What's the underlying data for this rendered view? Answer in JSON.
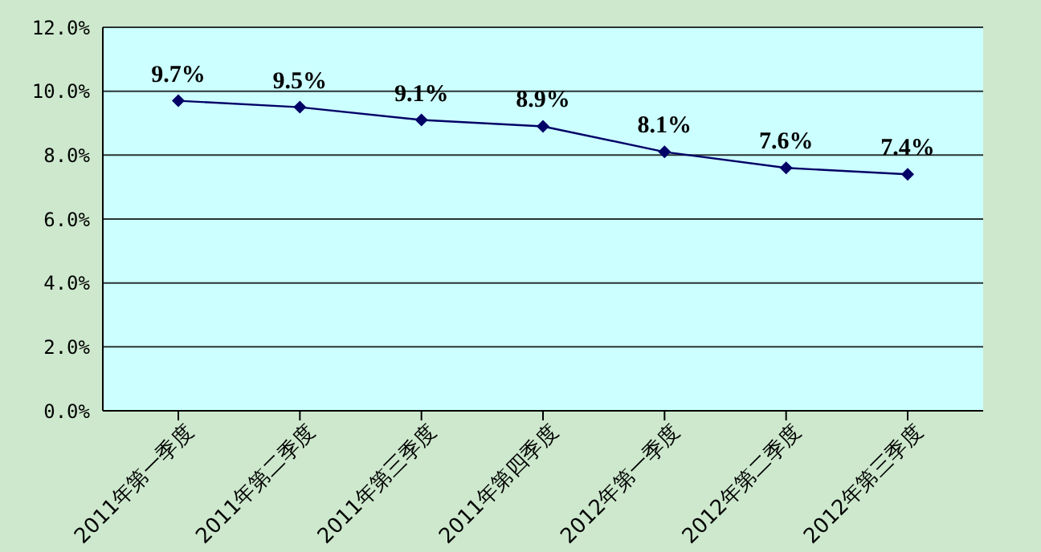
{
  "chart_data": {
    "type": "line",
    "categories": [
      "2011年第一季度",
      "2011年第二季度",
      "2011年第三季度",
      "2011年第四季度",
      "2012年第一季度",
      "2012年第二季度",
      "2012年第三季度"
    ],
    "series": [
      {
        "color": "#000066",
        "values": [
          9.7,
          9.5,
          9.1,
          8.9,
          8.1,
          7.6,
          7.4
        ],
        "value_labels": [
          "9.7%",
          "9.5%",
          "9.1%",
          "8.9%",
          "8.1%",
          "7.6%",
          "7.4%"
        ]
      }
    ],
    "ylim": [
      0,
      12
    ],
    "yticks": [
      {
        "value": 0,
        "label": "0.0%"
      },
      {
        "value": 2,
        "label": "2.0%"
      },
      {
        "value": 4,
        "label": "4.0%"
      },
      {
        "value": 6,
        "label": "6.0%"
      },
      {
        "value": 8,
        "label": "8.0%"
      },
      {
        "value": 10,
        "label": "10.0%"
      },
      {
        "value": 12,
        "label": "12.0%"
      }
    ],
    "grid": "y",
    "marker": "diamond",
    "line_style": "solid",
    "legend": false
  }
}
